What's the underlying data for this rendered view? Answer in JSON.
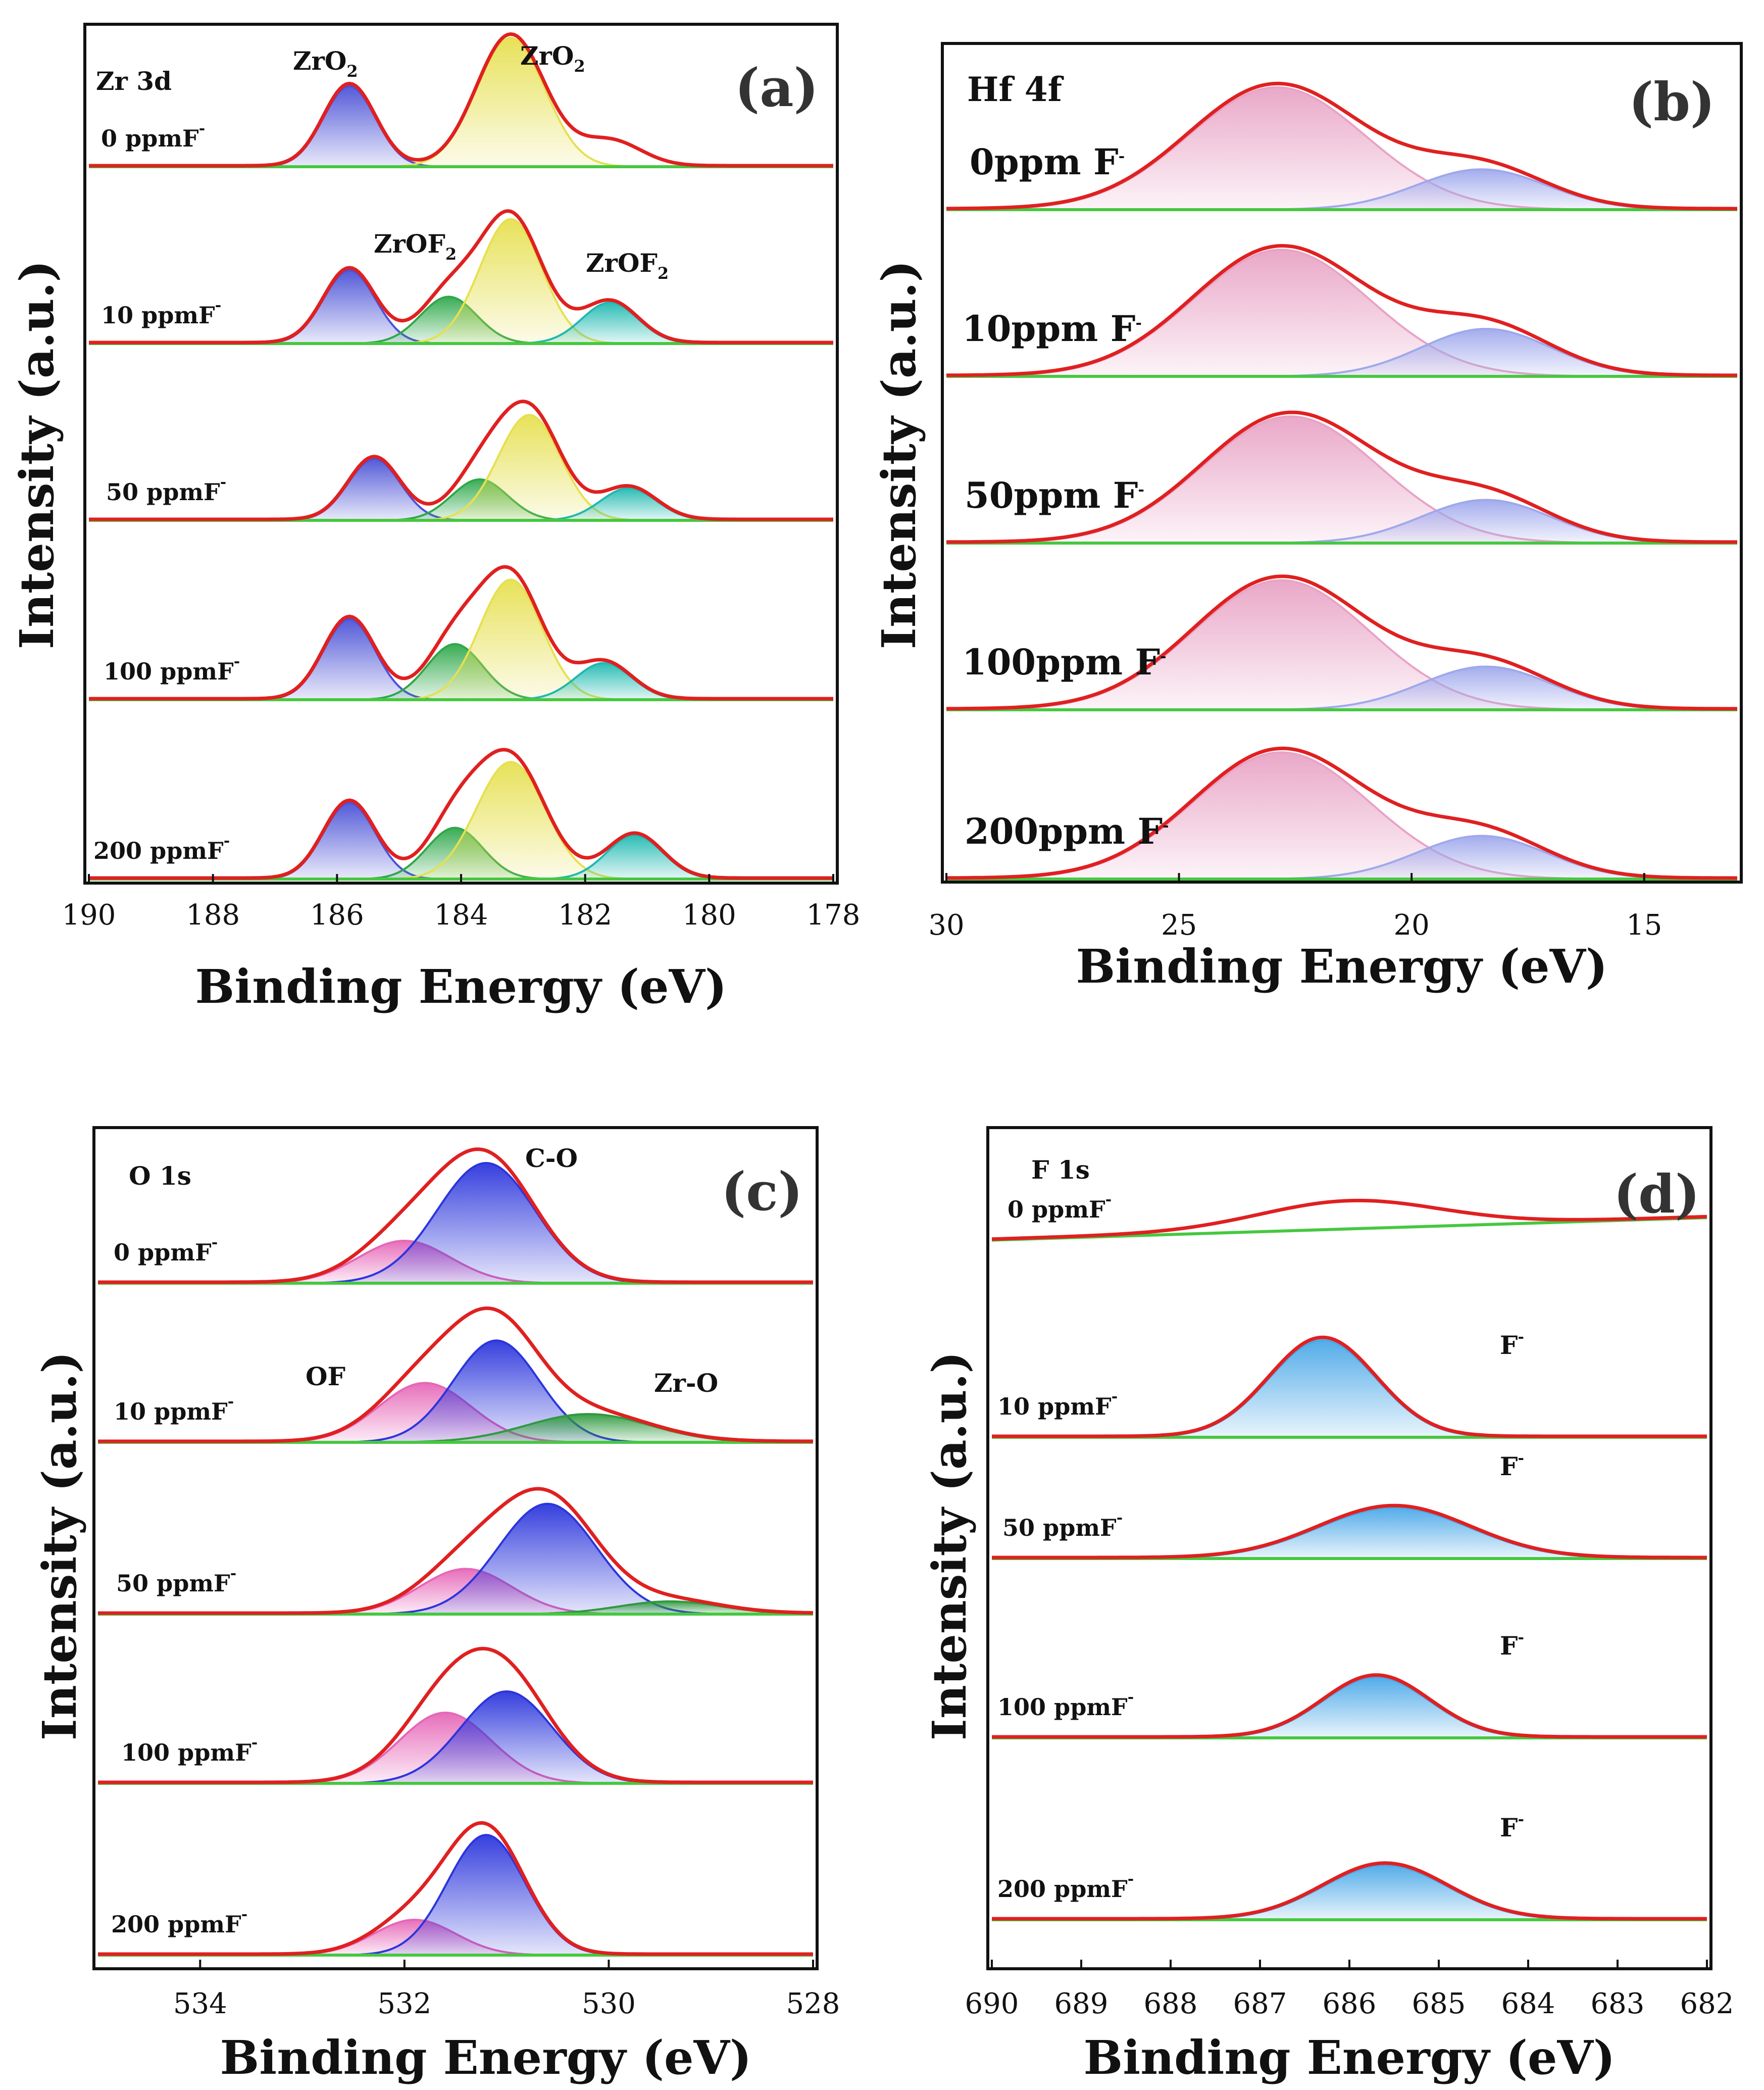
{
  "chart_data": [
    {
      "id": "a",
      "type": "area",
      "panel_label": "(a)",
      "core_level": "Zr 3d",
      "xlabel": "Binding Energy (eV)",
      "ylabel": "Intensity (a.u.)",
      "xlim": [
        190,
        178
      ],
      "xticks": [
        190,
        188,
        186,
        184,
        182,
        180,
        178
      ],
      "stack": [
        {
          "label": "0 ppmF",
          "components": [
            {
              "name": "ZrO2",
              "center": 185.8,
              "amplitude": 0.55,
              "width": 0.42,
              "color": "#4b52d6"
            },
            {
              "name": "ZrO2",
              "center": 183.2,
              "amplitude": 0.88,
              "width": 0.55,
              "color": "#e6e050"
            },
            {
              "name": "shoulder",
              "center": 181.6,
              "amplitude": 0.17,
              "width": 0.5,
              "color": "#c9c9c9",
              "fill": false
            }
          ]
        },
        {
          "label": "10 ppmF",
          "components": [
            {
              "name": "ZrO2",
              "center": 185.8,
              "amplitude": 0.5,
              "width": 0.42,
              "color": "#4b52d6"
            },
            {
              "name": "ZrOF2",
              "center": 184.2,
              "amplitude": 0.32,
              "width": 0.45,
              "color": "#2ea84a"
            },
            {
              "name": "ZrO2",
              "center": 183.2,
              "amplitude": 0.85,
              "width": 0.5,
              "color": "#e6e050"
            },
            {
              "name": "ZrOF2",
              "center": 181.6,
              "amplitude": 0.28,
              "width": 0.45,
              "color": "#1fb9b0"
            }
          ]
        },
        {
          "label": "50 ppmF",
          "components": [
            {
              "name": "ZrO2",
              "center": 185.4,
              "amplitude": 0.42,
              "width": 0.42,
              "color": "#4b52d6"
            },
            {
              "name": "ZrOF2",
              "center": 183.7,
              "amplitude": 0.28,
              "width": 0.45,
              "color": "#2ea84a"
            },
            {
              "name": "ZrO2",
              "center": 182.9,
              "amplitude": 0.72,
              "width": 0.5,
              "color": "#e6e050"
            },
            {
              "name": "ZrOF2",
              "center": 181.3,
              "amplitude": 0.22,
              "width": 0.45,
              "color": "#1fb9b0"
            }
          ]
        },
        {
          "label": "100 ppmF",
          "components": [
            {
              "name": "ZrO2",
              "center": 185.8,
              "amplitude": 0.55,
              "width": 0.42,
              "color": "#4b52d6"
            },
            {
              "name": "ZrOF2",
              "center": 184.1,
              "amplitude": 0.38,
              "width": 0.45,
              "color": "#2ea84a"
            },
            {
              "name": "ZrO2",
              "center": 183.2,
              "amplitude": 0.82,
              "width": 0.5,
              "color": "#e6e050"
            },
            {
              "name": "ZrOF2",
              "center": 181.7,
              "amplitude": 0.25,
              "width": 0.45,
              "color": "#1fb9b0"
            }
          ]
        },
        {
          "label": "200 ppmF",
          "components": [
            {
              "name": "ZrO2",
              "center": 185.8,
              "amplitude": 0.52,
              "width": 0.42,
              "color": "#4b52d6"
            },
            {
              "name": "ZrOF2",
              "center": 184.1,
              "amplitude": 0.35,
              "width": 0.45,
              "color": "#2ea84a"
            },
            {
              "name": "ZrO2",
              "center": 183.2,
              "amplitude": 0.8,
              "width": 0.55,
              "color": "#e6e050"
            },
            {
              "name": "ZrOF2",
              "center": 181.2,
              "amplitude": 0.3,
              "width": 0.45,
              "color": "#1fb9b0"
            }
          ]
        }
      ]
    },
    {
      "id": "b",
      "type": "area",
      "panel_label": "(b)",
      "core_level": "Hf 4f",
      "xlabel": "Binding Energy (eV)",
      "ylabel": "Intensity (a.u.)",
      "xlim": [
        30,
        13
      ],
      "xticks": [
        30,
        25,
        20,
        15
      ],
      "stack": [
        {
          "label": "0ppm F",
          "components": [
            {
              "name": "Hf 4f main",
              "center": 22.9,
              "amplitude": 0.85,
              "width": 1.9,
              "color": "#e8a3c5"
            },
            {
              "name": "Hf 4f minor",
              "center": 18.5,
              "amplitude": 0.28,
              "width": 1.4,
              "color": "#9ea8ec"
            }
          ]
        },
        {
          "label": "10ppm F",
          "components": [
            {
              "name": "Hf 4f main",
              "center": 22.8,
              "amplitude": 0.88,
              "width": 1.9,
              "color": "#e8a3c5"
            },
            {
              "name": "Hf 4f minor",
              "center": 18.4,
              "amplitude": 0.33,
              "width": 1.4,
              "color": "#9ea8ec"
            }
          ]
        },
        {
          "label": "50ppm F",
          "components": [
            {
              "name": "Hf 4f main",
              "center": 22.6,
              "amplitude": 0.88,
              "width": 1.9,
              "color": "#e8a3c5"
            },
            {
              "name": "Hf 4f minor",
              "center": 18.4,
              "amplitude": 0.3,
              "width": 1.4,
              "color": "#9ea8ec"
            }
          ]
        },
        {
          "label": "100ppm F",
          "components": [
            {
              "name": "Hf 4f main",
              "center": 22.8,
              "amplitude": 0.9,
              "width": 1.9,
              "color": "#e8a3c5"
            },
            {
              "name": "Hf 4f minor",
              "center": 18.4,
              "amplitude": 0.3,
              "width": 1.4,
              "color": "#9ea8ec"
            }
          ]
        },
        {
          "label": "200ppm F",
          "components": [
            {
              "name": "Hf 4f main",
              "center": 22.8,
              "amplitude": 0.88,
              "width": 1.9,
              "color": "#e8a3c5"
            },
            {
              "name": "Hf 4f minor",
              "center": 18.5,
              "amplitude": 0.3,
              "width": 1.4,
              "color": "#9ea8ec"
            }
          ]
        }
      ]
    },
    {
      "id": "c",
      "type": "area",
      "panel_label": "(c)",
      "core_level": "O 1s",
      "xlabel": "Binding Energy (eV)",
      "ylabel": "Intensity (a.u.)",
      "xlim": [
        535,
        528
      ],
      "xticks": [
        534,
        532,
        530,
        528
      ],
      "stack": [
        {
          "label": "0 ppmF",
          "components": [
            {
              "name": "OF",
              "center": 532.0,
              "amplitude": 0.3,
              "width": 0.45,
              "color": "#e667b8"
            },
            {
              "name": "C-O",
              "center": 531.2,
              "amplitude": 0.85,
              "width": 0.48,
              "color": "#2b35dc"
            }
          ]
        },
        {
          "label": "10 ppmF",
          "components": [
            {
              "name": "OF",
              "center": 531.8,
              "amplitude": 0.42,
              "width": 0.45,
              "color": "#e667b8"
            },
            {
              "name": "C-O",
              "center": 531.1,
              "amplitude": 0.72,
              "width": 0.42,
              "color": "#2b35dc"
            },
            {
              "name": "Zr-O",
              "center": 530.2,
              "amplitude": 0.2,
              "width": 0.6,
              "color": "#2f9a3e"
            }
          ]
        },
        {
          "label": "50 ppmF",
          "components": [
            {
              "name": "OF",
              "center": 531.4,
              "amplitude": 0.32,
              "width": 0.45,
              "color": "#e667b8"
            },
            {
              "name": "C-O",
              "center": 530.6,
              "amplitude": 0.78,
              "width": 0.48,
              "color": "#2b35dc"
            },
            {
              "name": "Zr-O",
              "center": 529.4,
              "amplitude": 0.09,
              "width": 0.5,
              "color": "#2f9a3e"
            }
          ]
        },
        {
          "label": "100 ppmF",
          "components": [
            {
              "name": "OF",
              "center": 531.6,
              "amplitude": 0.5,
              "width": 0.45,
              "color": "#e667b8"
            },
            {
              "name": "C-O",
              "center": 531.0,
              "amplitude": 0.65,
              "width": 0.45,
              "color": "#2b35dc"
            }
          ]
        },
        {
          "label": "200 ppmF",
          "components": [
            {
              "name": "OF",
              "center": 531.9,
              "amplitude": 0.25,
              "width": 0.4,
              "color": "#e667b8"
            },
            {
              "name": "C-O",
              "center": 531.2,
              "amplitude": 0.85,
              "width": 0.38,
              "color": "#2b35dc"
            }
          ]
        }
      ]
    },
    {
      "id": "d",
      "type": "area",
      "panel_label": "(d)",
      "core_level": "F 1s",
      "xlabel": "Binding Energy (eV)",
      "ylabel": "Intensity (a.u.)",
      "xlim": [
        690,
        682
      ],
      "xticks": [
        690,
        689,
        688,
        687,
        686,
        685,
        684,
        683,
        682
      ],
      "stack": [
        {
          "label": "0 ppmF",
          "components": [
            {
              "name": "envelope",
              "center": 686.0,
              "amplitude": 0.22,
              "width": 1.0,
              "color": "#e02020",
              "fill": false
            }
          ]
        },
        {
          "label": "10 ppmF",
          "peak_label": "F",
          "components": [
            {
              "name": "F",
              "center": 686.3,
              "amplitude": 0.8,
              "width": 0.6,
              "color": "#4aa8e8"
            }
          ]
        },
        {
          "label": "50 ppmF",
          "peak_label": "F",
          "components": [
            {
              "name": "F",
              "center": 685.5,
              "amplitude": 0.42,
              "width": 0.85,
              "color": "#4aa8e8"
            }
          ]
        },
        {
          "label": "100 ppmF",
          "peak_label": "F",
          "components": [
            {
              "name": "F",
              "center": 685.7,
              "amplitude": 0.5,
              "width": 0.6,
              "color": "#4aa8e8"
            }
          ]
        },
        {
          "label": "200 ppmF",
          "peak_label": "F",
          "components": [
            {
              "name": "F",
              "center": 685.6,
              "amplitude": 0.45,
              "width": 0.7,
              "color": "#4aa8e8"
            }
          ]
        }
      ]
    }
  ],
  "annotations": {
    "a": {
      "zro2_left": "ZrO",
      "zro2_right": "ZrO",
      "zrof2_left": "ZrOF",
      "zrof2_right": "ZrOF",
      "sub_2": "2",
      "sup_minus": "-"
    },
    "c": {
      "c_o": "C-O",
      "of": "OF",
      "zr_o": "Zr-O"
    }
  },
  "colors": {
    "envelope": "#e02020",
    "background_line": "#46c840",
    "frame": "#111111"
  }
}
